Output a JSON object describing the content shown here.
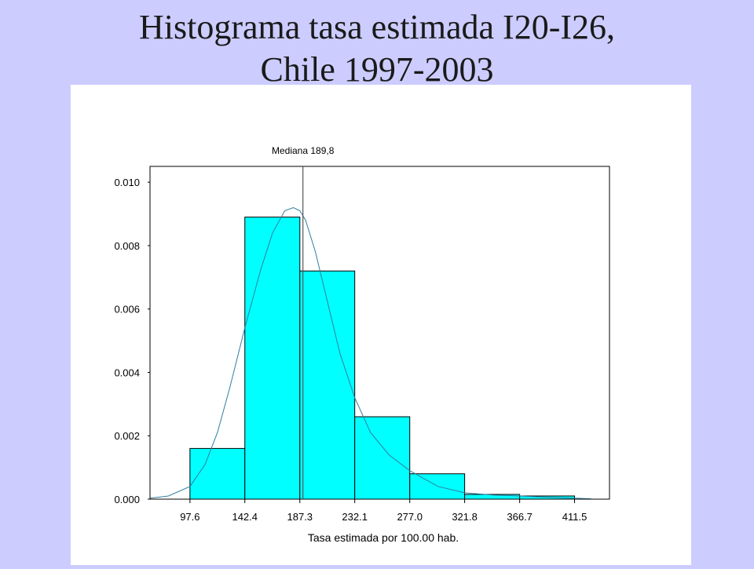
{
  "slide": {
    "title_line1": "Histograma tasa estimada I20-I26,",
    "title_line2": "Chile 1997-2003"
  },
  "chart_data": {
    "type": "bar",
    "xlabel": "Tasa estimada por 100.00 hab.",
    "ylabel": "",
    "x_ticks": [
      "97.6",
      "142.4",
      "187.3",
      "232.1",
      "277.0",
      "321.8",
      "366.7",
      "411.5"
    ],
    "y_ticks": [
      "0.000",
      "0.002",
      "0.004",
      "0.006",
      "0.008",
      "0.010"
    ],
    "ylim": [
      0,
      0.0105
    ],
    "xlim": [
      65,
      440
    ],
    "bins": [
      {
        "from": 97.6,
        "to": 142.4,
        "density": 0.0016
      },
      {
        "from": 142.4,
        "to": 187.3,
        "density": 0.0089
      },
      {
        "from": 187.3,
        "to": 232.1,
        "density": 0.0072
      },
      {
        "from": 232.1,
        "to": 277.0,
        "density": 0.0026
      },
      {
        "from": 277.0,
        "to": 321.8,
        "density": 0.0008
      },
      {
        "from": 321.8,
        "to": 366.7,
        "density": 0.00015
      },
      {
        "from": 366.7,
        "to": 411.5,
        "density": 0.0001
      }
    ],
    "density_curve": {
      "x": [
        65,
        80,
        97.6,
        110,
        120,
        130,
        142.4,
        155,
        165,
        175,
        182,
        187.3,
        192,
        200,
        210,
        220,
        232.1,
        245,
        260,
        277.0,
        300,
        321.8,
        345,
        366.7,
        390,
        411.5,
        425
      ],
      "y": [
        3e-05,
        0.0001,
        0.0004,
        0.0011,
        0.0021,
        0.0035,
        0.0054,
        0.0072,
        0.0084,
        0.0091,
        0.0092,
        0.0091,
        0.0088,
        0.0078,
        0.0062,
        0.0046,
        0.0032,
        0.0021,
        0.0014,
        0.0009,
        0.0004,
        0.0002,
        0.00013,
        0.0001,
        6e-05,
        3e-05,
        1e-05
      ]
    },
    "median": {
      "value": 189.8,
      "label": "Mediana 189,8"
    },
    "bar_color": "#00FFFF",
    "bar_stroke": "#000000",
    "curve_color": "#2E7FA0",
    "grid": false
  }
}
